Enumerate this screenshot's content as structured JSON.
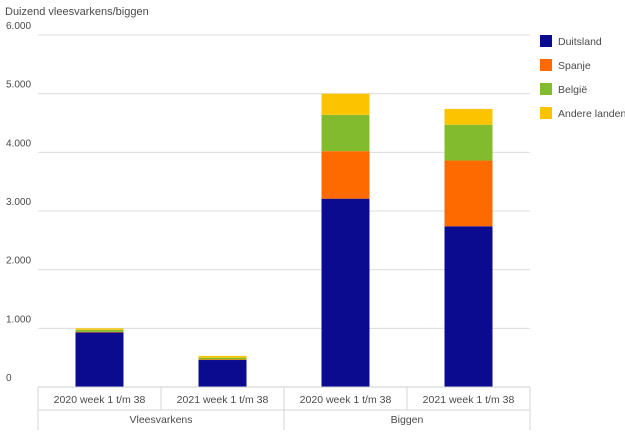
{
  "chart_data": {
    "type": "bar",
    "stacked": true,
    "ylabel": "Duizend vleesvarkens/biggen",
    "ylim": [
      0,
      6000
    ],
    "yticks": [
      {
        "value": 0,
        "label": "0"
      },
      {
        "value": 1000,
        "label": "1.000"
      },
      {
        "value": 2000,
        "label": "2.000"
      },
      {
        "value": 3000,
        "label": "3.000"
      },
      {
        "value": 4000,
        "label": "4.000"
      },
      {
        "value": 5000,
        "label": "5.000"
      },
      {
        "value": 6000,
        "label": "6.000"
      }
    ],
    "grid": true,
    "legend_position": "right",
    "categories": [
      "2020 week 1 t/m 38",
      "2021 week 1 t/m 38",
      "2020 week 1 t/m 38",
      "2021 week 1 t/m 38"
    ],
    "groups": [
      {
        "label": "Vleesvarkens",
        "categories": [
          0,
          1
        ]
      },
      {
        "label": "Biggen",
        "categories": [
          2,
          3
        ]
      }
    ],
    "series": [
      {
        "name": "Duitsland",
        "color": "#0b0b8f",
        "values": [
          930,
          460,
          3210,
          2740
        ]
      },
      {
        "name": "Spanje",
        "color": "#ff6a00",
        "values": [
          10,
          10,
          810,
          1120
        ]
      },
      {
        "name": "België",
        "color": "#82bc2e",
        "values": [
          35,
          30,
          620,
          610
        ]
      },
      {
        "name": "Andere landen",
        "color": "#fcc400",
        "values": [
          25,
          30,
          360,
          270
        ]
      }
    ]
  }
}
